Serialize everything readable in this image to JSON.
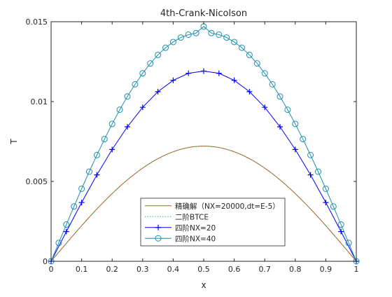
{
  "chart_data": {
    "type": "line",
    "title": "4th-Crank-Nicolson",
    "xlabel": "x",
    "ylabel": "T",
    "xlim": [
      0,
      1
    ],
    "ylim": [
      0,
      0.015
    ],
    "xticks": [
      "0",
      "0.1",
      "0.2",
      "0.3",
      "0.4",
      "0.5",
      "0.6",
      "0.7",
      "0.8",
      "0.9",
      "1"
    ],
    "yticks": [
      "0",
      "0.005",
      "0.01",
      "0.015"
    ],
    "grid": false,
    "legend_position": "bottom-center",
    "series": [
      {
        "name": "精确解（NX=20000,dt=E-5）",
        "color": "#d9531e",
        "line_style": "solid",
        "marker": "none",
        "x": [
          0,
          0.05,
          0.1,
          0.15,
          0.2,
          0.25,
          0.3,
          0.35,
          0.4,
          0.45,
          0.5,
          0.55,
          0.6,
          0.65,
          0.7,
          0.75,
          0.8,
          0.85,
          0.9,
          0.95,
          1
        ],
        "values": [
          0,
          0.00113,
          0.00223,
          0.00327,
          0.00423,
          0.00509,
          0.00583,
          0.00642,
          0.00685,
          0.00712,
          0.00721,
          0.00712,
          0.00685,
          0.00642,
          0.00583,
          0.00509,
          0.00423,
          0.00327,
          0.00223,
          0.00113,
          0
        ]
      },
      {
        "name": "二阶BTCE",
        "color": "#00b050",
        "line_style": "dotted",
        "marker": "none",
        "x": [
          0,
          0.05,
          0.1,
          0.15,
          0.2,
          0.25,
          0.3,
          0.35,
          0.4,
          0.45,
          0.5,
          0.55,
          0.6,
          0.65,
          0.7,
          0.75,
          0.8,
          0.85,
          0.9,
          0.95,
          1
        ],
        "values": [
          0,
          0.00113,
          0.00223,
          0.00327,
          0.00423,
          0.00509,
          0.00583,
          0.00642,
          0.00685,
          0.00712,
          0.00721,
          0.00712,
          0.00685,
          0.00642,
          0.00583,
          0.00509,
          0.00423,
          0.00327,
          0.00223,
          0.00113,
          0
        ]
      },
      {
        "name": "四阶NX=20",
        "color": "#0000ff",
        "line_style": "solid",
        "marker": "plus",
        "x": [
          0,
          0.05,
          0.1,
          0.15,
          0.2,
          0.25,
          0.3,
          0.35,
          0.4,
          0.45,
          0.5,
          0.55,
          0.6,
          0.65,
          0.7,
          0.75,
          0.8,
          0.85,
          0.9,
          0.95,
          1
        ],
        "values": [
          0,
          0.00186,
          0.00368,
          0.00541,
          0.007,
          0.00842,
          0.00964,
          0.01062,
          0.01133,
          0.01177,
          0.01191,
          0.01177,
          0.01133,
          0.01062,
          0.00964,
          0.00842,
          0.007,
          0.00541,
          0.00368,
          0.00186,
          0
        ]
      },
      {
        "name": "四阶NX=40",
        "color": "#1a8fb0",
        "line_style": "solid",
        "marker": "circle",
        "x": [
          0,
          0.025,
          0.05,
          0.075,
          0.1,
          0.125,
          0.15,
          0.175,
          0.2,
          0.225,
          0.25,
          0.275,
          0.3,
          0.325,
          0.35,
          0.375,
          0.4,
          0.425,
          0.45,
          0.475,
          0.5,
          0.525,
          0.55,
          0.575,
          0.6,
          0.625,
          0.65,
          0.675,
          0.7,
          0.725,
          0.75,
          0.775,
          0.8,
          0.825,
          0.85,
          0.875,
          0.9,
          0.925,
          0.95,
          0.975,
          1
        ],
        "values": [
          0,
          0.00115,
          0.0023,
          0.00343,
          0.00454,
          0.00561,
          0.00665,
          0.00765,
          0.0086,
          0.00949,
          0.01032,
          0.01108,
          0.01177,
          0.01239,
          0.01292,
          0.01337,
          0.01373,
          0.01401,
          0.01419,
          0.01429,
          0.0147,
          0.01429,
          0.01419,
          0.01401,
          0.01373,
          0.01337,
          0.01292,
          0.01239,
          0.01177,
          0.01108,
          0.01032,
          0.00949,
          0.0086,
          0.00765,
          0.00665,
          0.00561,
          0.00454,
          0.00343,
          0.0023,
          0.00115,
          0
        ]
      }
    ]
  }
}
